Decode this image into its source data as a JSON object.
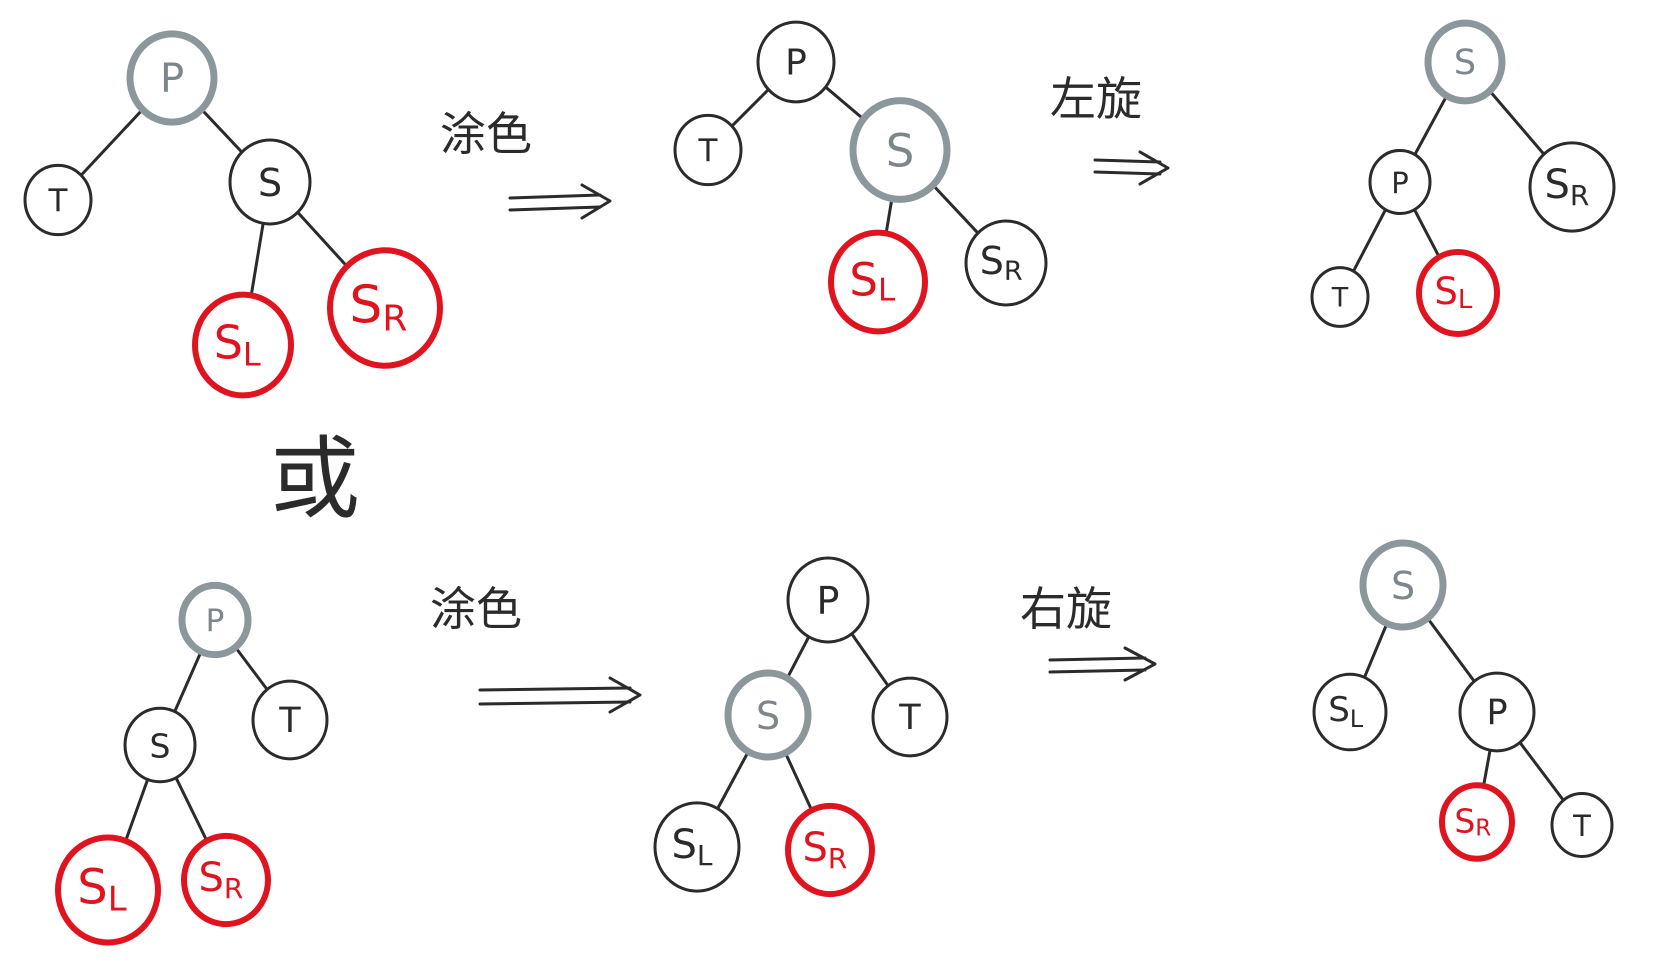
{
  "colors": {
    "black": "#2b2b2b",
    "gray": "#8c979c",
    "red": "#e0141f"
  },
  "labels": {
    "recolor": "涂色",
    "rotate_left": "左旋",
    "rotate_right": "右旋",
    "or": "或"
  },
  "node_labels": {
    "P": "P",
    "T": "T",
    "S": "S",
    "SL": "S",
    "SL_sub": "L",
    "SR": "S",
    "SR_sub": "R"
  },
  "trees": [
    {
      "nodes": [
        {
          "key": "P",
          "color": "gray"
        },
        {
          "key": "T",
          "color": "black"
        },
        {
          "key": "S",
          "color": "black"
        },
        {
          "key": "SL",
          "color": "red"
        },
        {
          "key": "SR",
          "color": "red"
        }
      ]
    },
    {
      "nodes": [
        {
          "key": "P",
          "color": "black"
        },
        {
          "key": "T",
          "color": "black"
        },
        {
          "key": "S",
          "color": "gray"
        },
        {
          "key": "SL",
          "color": "red"
        },
        {
          "key": "SR",
          "color": "black"
        }
      ]
    },
    {
      "nodes": [
        {
          "key": "S",
          "color": "gray"
        },
        {
          "key": "P",
          "color": "black"
        },
        {
          "key": "SR",
          "color": "black"
        },
        {
          "key": "T",
          "color": "black"
        },
        {
          "key": "SL",
          "color": "red"
        }
      ]
    },
    {
      "nodes": [
        {
          "key": "P",
          "color": "gray"
        },
        {
          "key": "S",
          "color": "black"
        },
        {
          "key": "T",
          "color": "black"
        },
        {
          "key": "SL",
          "color": "red"
        },
        {
          "key": "SR",
          "color": "red"
        }
      ]
    },
    {
      "nodes": [
        {
          "key": "P",
          "color": "black"
        },
        {
          "key": "S",
          "color": "gray"
        },
        {
          "key": "T",
          "color": "black"
        },
        {
          "key": "SL",
          "color": "black"
        },
        {
          "key": "SR",
          "color": "red"
        }
      ]
    },
    {
      "nodes": [
        {
          "key": "S",
          "color": "gray"
        },
        {
          "key": "SL",
          "color": "black"
        },
        {
          "key": "P",
          "color": "black"
        },
        {
          "key": "SR",
          "color": "red"
        },
        {
          "key": "T",
          "color": "black"
        }
      ]
    }
  ]
}
